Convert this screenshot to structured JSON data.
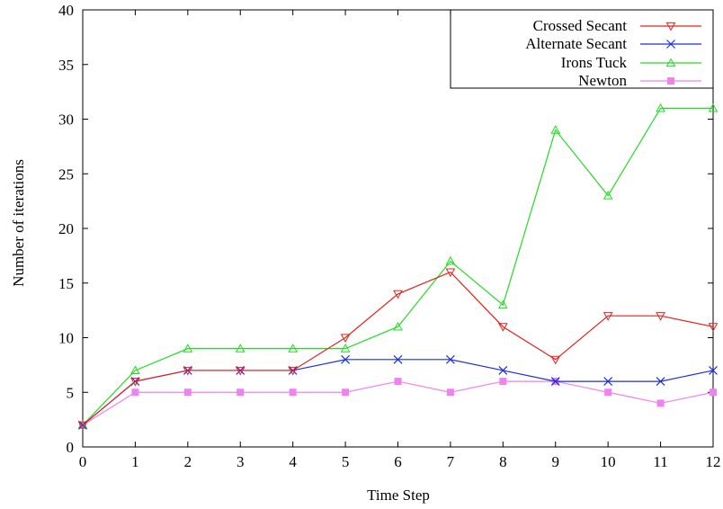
{
  "chart_data": {
    "type": "line",
    "xlabel": "Time Step",
    "ylabel": "Number of iterations",
    "xlim": [
      0,
      12
    ],
    "ylim": [
      0,
      40
    ],
    "x_ticks": [
      "0",
      "1",
      "2",
      "3",
      "4",
      "5",
      "6",
      "7",
      "8",
      "9",
      "10",
      "11",
      "12"
    ],
    "y_ticks": [
      "0",
      "5",
      "10",
      "15",
      "20",
      "25",
      "30",
      "35",
      "40"
    ],
    "x": [
      0,
      1,
      2,
      3,
      4,
      5,
      6,
      7,
      8,
      9,
      10,
      11,
      12
    ],
    "grid": false,
    "legend_position": "top-right",
    "series": [
      {
        "name": "Crossed Secant",
        "color": "#e8201c",
        "marker": "triangle-down-open",
        "values": [
          2,
          6,
          7,
          7,
          7,
          10,
          14,
          16,
          11,
          8,
          12,
          12,
          11
        ]
      },
      {
        "name": "Alternate Secant",
        "color": "#1c2ee0",
        "marker": "x",
        "values": [
          2,
          6,
          7,
          7,
          7,
          8,
          8,
          8,
          7,
          6,
          6,
          6,
          7
        ]
      },
      {
        "name": "Irons Tuck",
        "color": "#22dc22",
        "marker": "triangle-up-open",
        "values": [
          2,
          7,
          9,
          9,
          9,
          9,
          11,
          17,
          13,
          29,
          23,
          31,
          31
        ]
      },
      {
        "name": "Newton",
        "color": "#ee82ee",
        "marker": "square-filled",
        "values": [
          2,
          5,
          5,
          5,
          5,
          5,
          6,
          5,
          6,
          6,
          5,
          4,
          5
        ]
      }
    ]
  }
}
